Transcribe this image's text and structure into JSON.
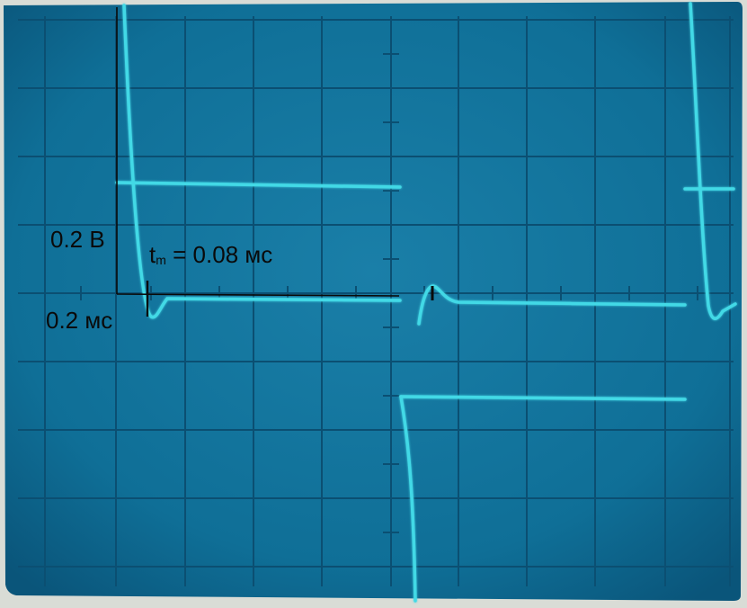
{
  "annotations": {
    "volts_per_div": "0.2 В",
    "time_per_div": "0.2 мс",
    "tm_symbol": "t",
    "tm_subscript": "m",
    "tm_value": "= 0.08 мс"
  },
  "colors": {
    "screen": "#0f6f97",
    "grid": "#0b4f72",
    "trace": "#43d9e6",
    "bezel": "#d9dcd6",
    "scale_lines": "#0a0a0a"
  }
}
